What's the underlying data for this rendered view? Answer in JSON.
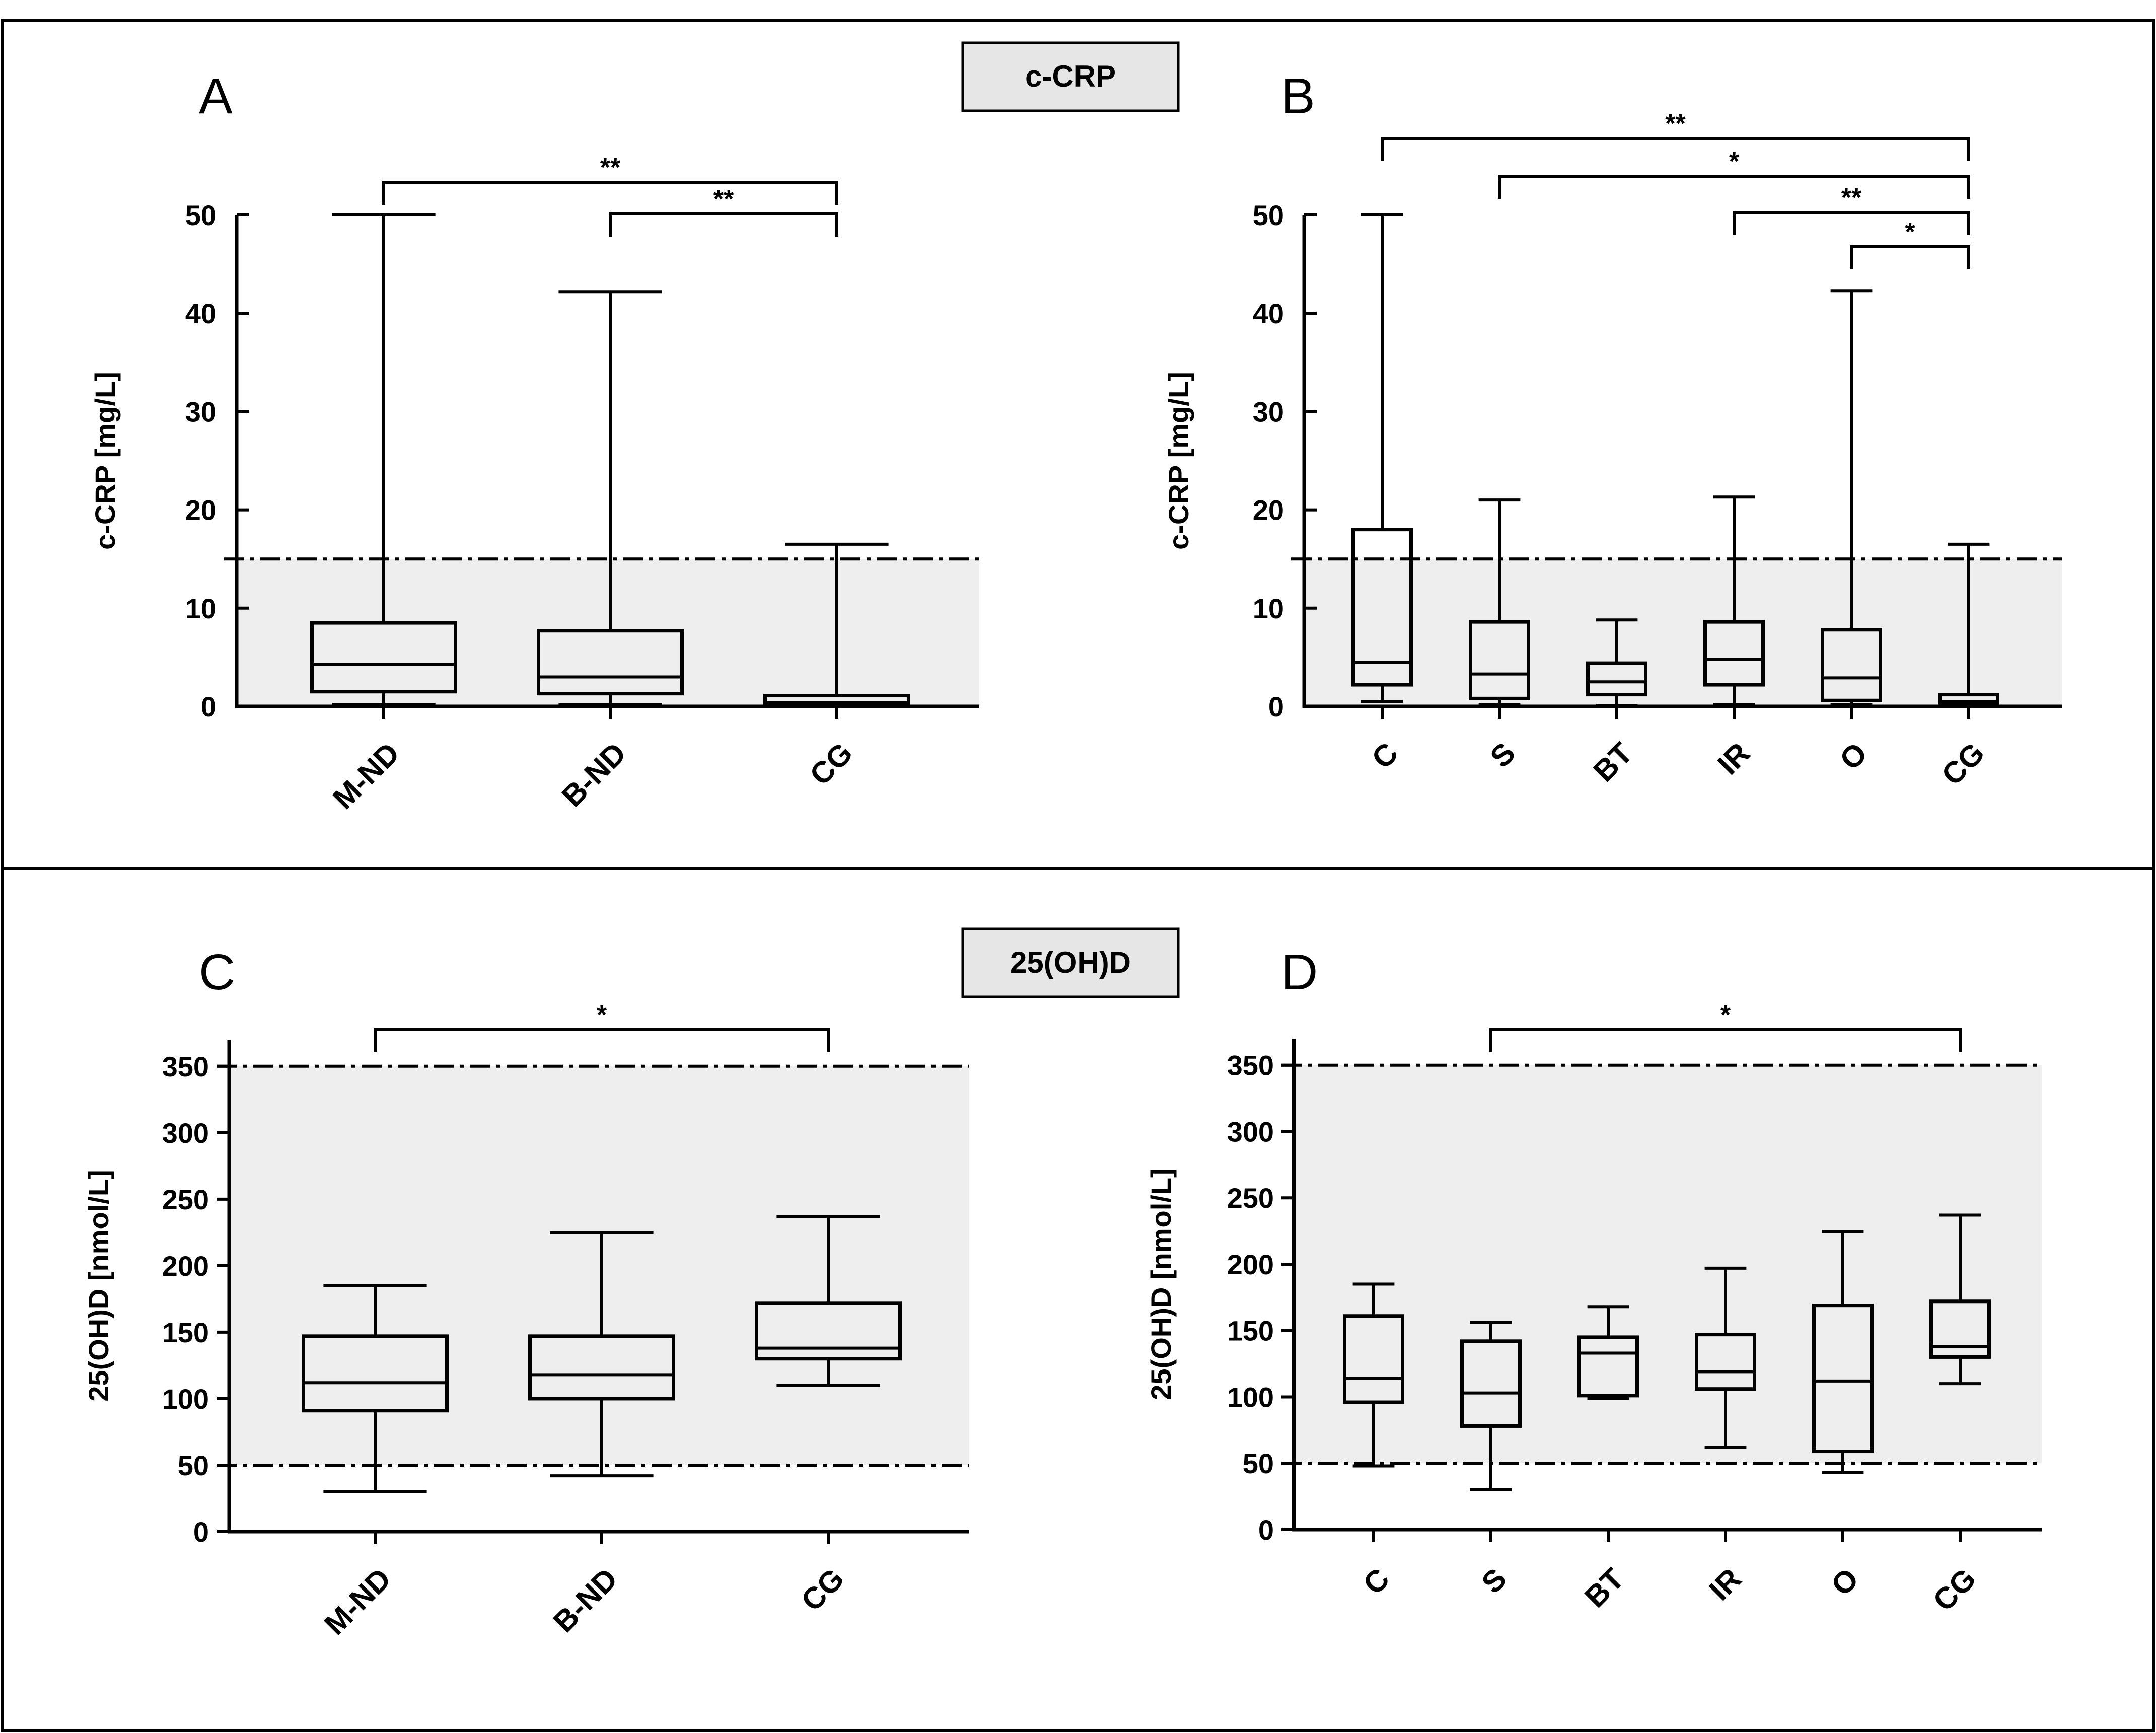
{
  "headers": [
    {
      "label": "c-CRP"
    },
    {
      "label": "25(OH)D"
    }
  ],
  "chart_data": [
    {
      "panel": "A",
      "type": "box",
      "ylabel": "c-CRP [mg/L]",
      "ylim": [
        0,
        50
      ],
      "yticks": [
        0,
        10,
        20,
        30,
        40,
        50
      ],
      "reference_lines": [
        15
      ],
      "shaded_range": [
        0,
        15
      ],
      "categories": [
        "M-ND",
        "B-ND",
        "CG"
      ],
      "boxes": [
        {
          "min": 0.2,
          "q1": 1.5,
          "median": 4.3,
          "q3": 8.5,
          "max": 50.0
        },
        {
          "min": 0.2,
          "q1": 1.3,
          "median": 3.0,
          "q3": 7.7,
          "max": 42.2
        },
        {
          "min": 0.1,
          "q1": 0.2,
          "median": 0.4,
          "q3": 1.1,
          "max": 16.5
        }
      ],
      "significance": [
        {
          "from": "M-ND",
          "to": "CG",
          "label": "**"
        },
        {
          "from": "B-ND",
          "to": "CG",
          "label": "**"
        }
      ]
    },
    {
      "panel": "B",
      "type": "box",
      "ylabel": "c-CRP [mg/L]",
      "ylim": [
        0,
        50
      ],
      "yticks": [
        0,
        10,
        20,
        30,
        40,
        50
      ],
      "reference_lines": [
        15
      ],
      "shaded_range": [
        0,
        15
      ],
      "categories": [
        "C",
        "S",
        "BT",
        "IR",
        "O",
        "CG"
      ],
      "boxes": [
        {
          "min": 0.5,
          "q1": 2.2,
          "median": 4.5,
          "q3": 18.0,
          "max": 50.0
        },
        {
          "min": 0.2,
          "q1": 0.8,
          "median": 3.3,
          "q3": 8.6,
          "max": 21.0
        },
        {
          "min": 0.1,
          "q1": 1.2,
          "median": 2.5,
          "q3": 4.4,
          "max": 8.8
        },
        {
          "min": 0.2,
          "q1": 2.2,
          "median": 4.8,
          "q3": 8.6,
          "max": 21.3
        },
        {
          "min": 0.2,
          "q1": 0.6,
          "median": 2.9,
          "q3": 7.8,
          "max": 42.3
        },
        {
          "min": 0.1,
          "q1": 0.2,
          "median": 0.5,
          "q3": 1.2,
          "max": 16.5
        }
      ],
      "significance": [
        {
          "from": "C",
          "to": "CG",
          "label": "**"
        },
        {
          "from": "S",
          "to": "CG",
          "label": "*"
        },
        {
          "from": "IR",
          "to": "CG",
          "label": "**"
        },
        {
          "from": "O",
          "to": "CG",
          "label": "*"
        }
      ]
    },
    {
      "panel": "C",
      "type": "box",
      "ylabel": "25(OH)D [nmol/L]",
      "ylim": [
        0,
        370
      ],
      "yticks": [
        0,
        50,
        100,
        150,
        200,
        250,
        300,
        350
      ],
      "reference_lines": [
        50,
        350
      ],
      "shaded_range": [
        50,
        350
      ],
      "categories": [
        "M-ND",
        "B-ND",
        "CG"
      ],
      "boxes": [
        {
          "min": 30,
          "q1": 91,
          "median": 112,
          "q3": 147,
          "max": 185
        },
        {
          "min": 42,
          "q1": 100,
          "median": 118,
          "q3": 147,
          "max": 225
        },
        {
          "min": 110,
          "q1": 130,
          "median": 138,
          "q3": 172,
          "max": 237
        }
      ],
      "significance": [
        {
          "from": "M-ND",
          "to": "CG",
          "label": "*"
        }
      ]
    },
    {
      "panel": "D",
      "type": "box",
      "ylabel": "25(OH)D [nmol/L]",
      "ylim": [
        0,
        370
      ],
      "yticks": [
        0,
        50,
        100,
        150,
        200,
        250,
        300,
        350
      ],
      "reference_lines": [
        50,
        350
      ],
      "shaded_range": [
        50,
        350
      ],
      "categories": [
        "C",
        "S",
        "BT",
        "IR",
        "O",
        "CG"
      ],
      "boxes": [
        {
          "min": 48,
          "q1": 96,
          "median": 114,
          "q3": 161,
          "max": 185
        },
        {
          "min": 30,
          "q1": 78,
          "median": 103,
          "q3": 142,
          "max": 156
        },
        {
          "min": 99,
          "q1": 101,
          "median": 133,
          "q3": 145,
          "max": 168
        },
        {
          "min": 62,
          "q1": 106,
          "median": 119,
          "q3": 147,
          "max": 197
        },
        {
          "min": 43,
          "q1": 59,
          "median": 112,
          "q3": 169,
          "max": 225
        },
        {
          "min": 110,
          "q1": 130,
          "median": 138,
          "q3": 172,
          "max": 237
        }
      ],
      "significance": [
        {
          "from": "S",
          "to": "CG",
          "label": "*"
        }
      ]
    }
  ]
}
